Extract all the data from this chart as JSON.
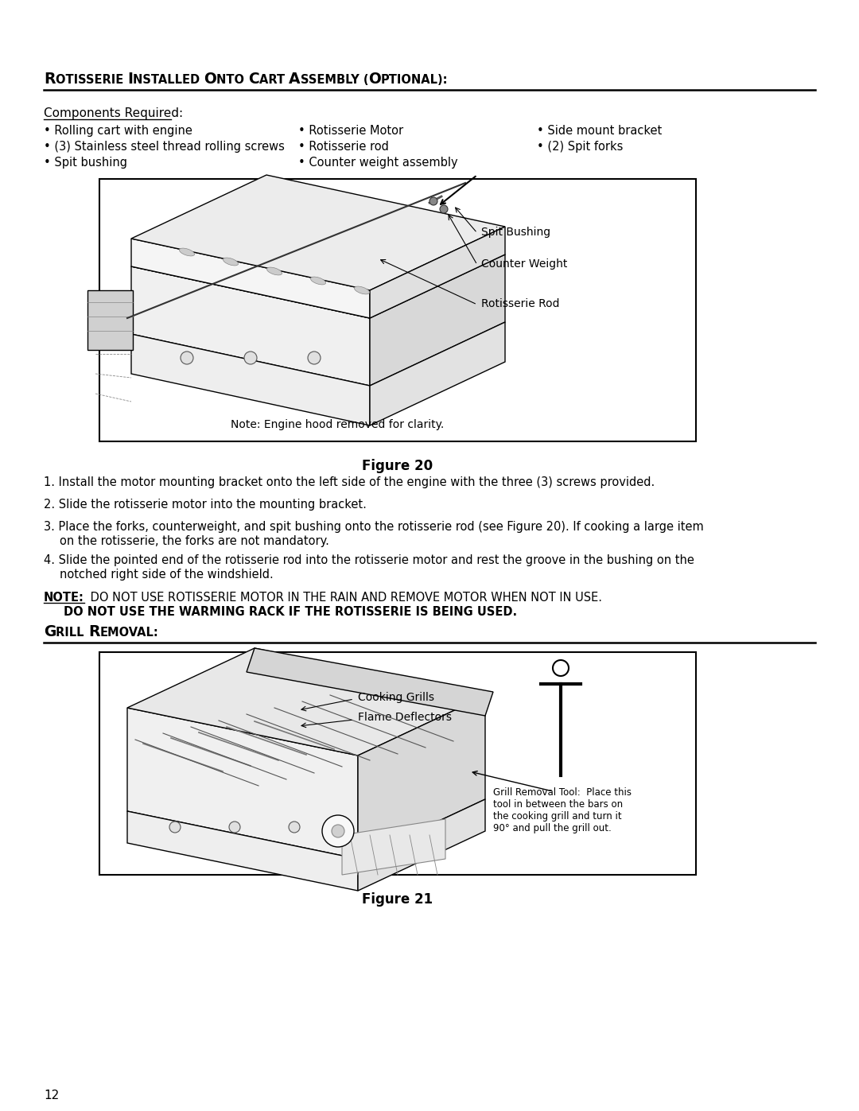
{
  "bg_color": "#ffffff",
  "text_color": "#000000",
  "page_number": "12",
  "section1_title_parts": [
    {
      "text": "R",
      "big": true
    },
    {
      "text": "otisserie ",
      "big": false
    },
    {
      "text": "I",
      "big": true
    },
    {
      "text": "nstalled ",
      "big": false
    },
    {
      "text": "O",
      "big": true
    },
    {
      "text": "nto ",
      "big": false
    },
    {
      "text": "C",
      "big": true
    },
    {
      "text": "art ",
      "big": false
    },
    {
      "text": "A",
      "big": true
    },
    {
      "text": "ssembly (",
      "big": false
    },
    {
      "text": "O",
      "big": true
    },
    {
      "text": "ptional):",
      "big": false
    }
  ],
  "section1_title": "ROTISSERIE INSTALLED ONTO CART ASSEMBLY (OPTIONAL):",
  "components_label": "Components Required:",
  "bullets_col1": [
    "Rolling cart with engine",
    "(3) Stainless steel thread rolling screws",
    "Spit bushing"
  ],
  "bullets_col2": [
    "Rotisserie Motor",
    "Rotisserie rod",
    "Counter weight assembly"
  ],
  "bullets_col3": [
    "Side mount bracket",
    "(2) Spit forks"
  ],
  "figure20_caption": "Figure 20",
  "figure20_note": "Note: Engine hood removed for clarity.",
  "figure20_labels": [
    "Spit Bushing",
    "Counter Weight",
    "Rotisserie Rod"
  ],
  "steps": [
    {
      "num": "1.",
      "text": "Install the motor mounting bracket onto the left side of the engine with the three (3) screws provided."
    },
    {
      "num": "2.",
      "text": "Slide the rotisserie motor into the mounting bracket."
    },
    {
      "num": "3.",
      "text": "Place the forks, counterweight, and spit bushing onto the rotisserie rod (see Figure 20). If cooking a large item on the rotisserie, the forks are not mandatory.",
      "wrap2": "on the rotisserie, the forks are not mandatory."
    },
    {
      "num": "4.",
      "text": "Slide the pointed end of the rotisserie rod into the rotisserie motor and rest the groove in the bushing on the notched right side of the windshield.",
      "wrap2": "notched right side of the windshield."
    }
  ],
  "note_text1": "DO NOT USE ROTISSERIE MOTOR IN THE RAIN AND REMOVE MOTOR WHEN NOT IN USE.",
  "note_text2": "DO NOT USE THE WARMING RACK IF THE ROTISSERIE IS BEING USED.",
  "section2_title": "GRILL REMOVAL:",
  "section2_title_display": "Grill Removal:",
  "figure21_caption": "Figure 21",
  "figure21_labels": [
    "Cooking Grills",
    "Flame Deflectors"
  ],
  "figure21_tool_text": "Grill Removal Tool:  Place this\ntool in between the bars on\nthe cooking grill and turn it\n90° and pull the grill out."
}
